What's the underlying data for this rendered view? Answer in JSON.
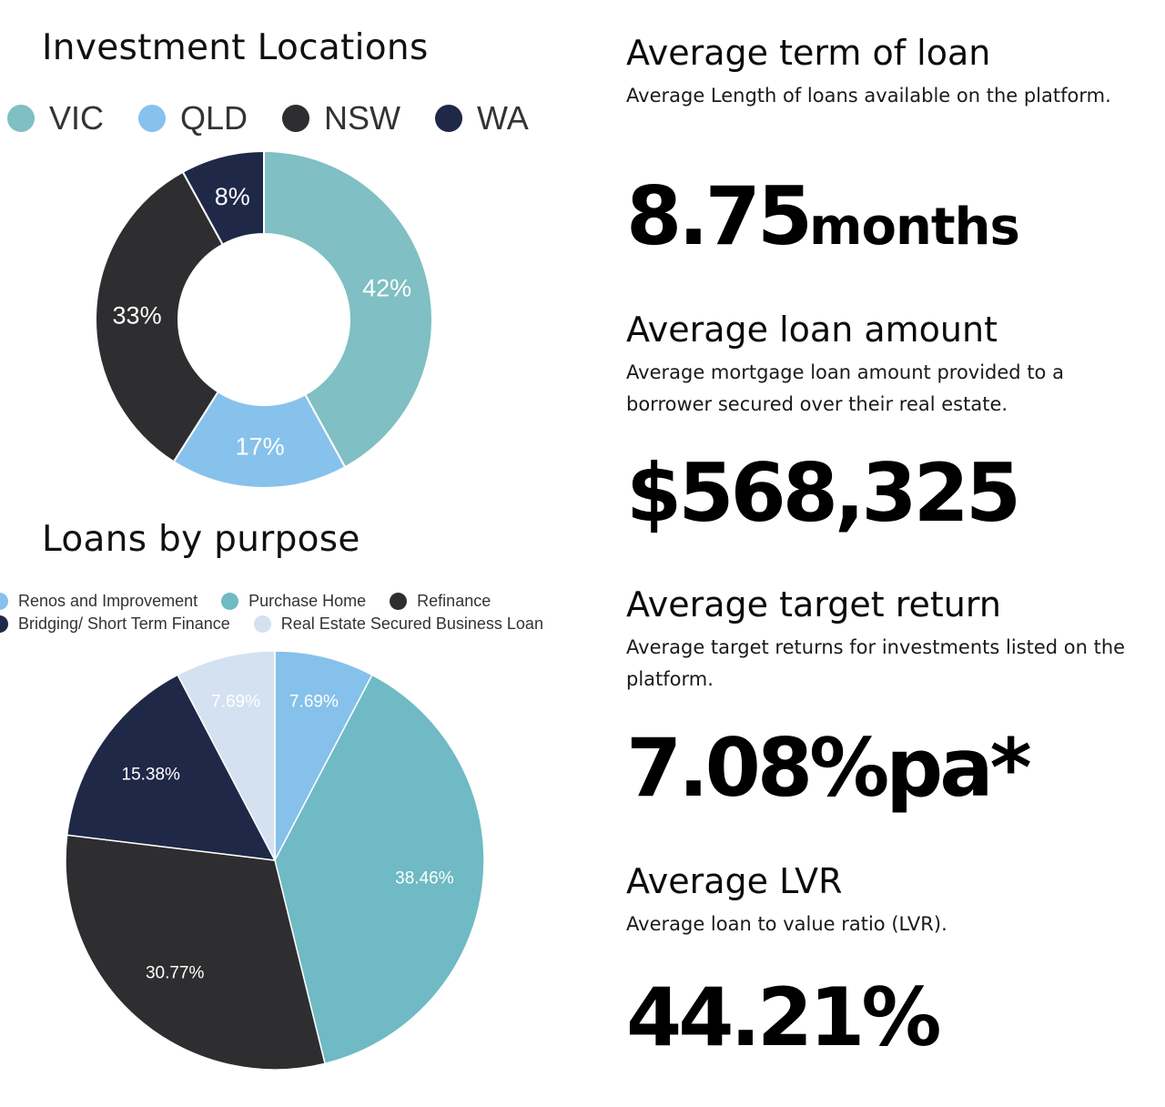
{
  "stats": {
    "term": {
      "title": "Average term of loan",
      "desc": "Average Length of loans available on the platform.",
      "value": "8.75",
      "unit": "months"
    },
    "amount": {
      "title": "Average loan amount",
      "desc": "Average mortgage loan amount provided to a borrower secured over their real estate.",
      "value": "$568,325"
    },
    "return": {
      "title": "Average target return",
      "desc": "Average target returns for investments listed on the platform.",
      "value": "7.08%pa*"
    },
    "lvr": {
      "title": "Average LVR",
      "desc": "Average loan to value ratio (LVR).",
      "value": "44.21%"
    }
  },
  "chart_data": [
    {
      "type": "pie",
      "variant": "donut",
      "title": "Investment Locations",
      "legend_position": "top",
      "categories": [
        "VIC",
        "QLD",
        "NSW",
        "WA"
      ],
      "values": [
        42,
        17,
        33,
        8
      ],
      "labels": [
        "42%",
        "17%",
        "33%",
        "8%"
      ],
      "colors": [
        "#80bfc3",
        "#87c2ec",
        "#2e2e30",
        "#202848"
      ]
    },
    {
      "type": "pie",
      "title": "Loans by purpose",
      "legend_position": "top",
      "categories": [
        "Renos and Improvement",
        "Purchase Home",
        "Refinance",
        "Bridging/ Short Term Finance",
        "Real Estate Secured Business Loan"
      ],
      "values": [
        7.69,
        38.46,
        30.77,
        15.38,
        7.69
      ],
      "labels": [
        "7.69%",
        "38.46%",
        "30.77%",
        "15.38%",
        "7.69%"
      ],
      "colors": [
        "#85c1eb",
        "#6fbac4",
        "#2e2e30",
        "#202848",
        "#d4e1f0"
      ]
    }
  ]
}
